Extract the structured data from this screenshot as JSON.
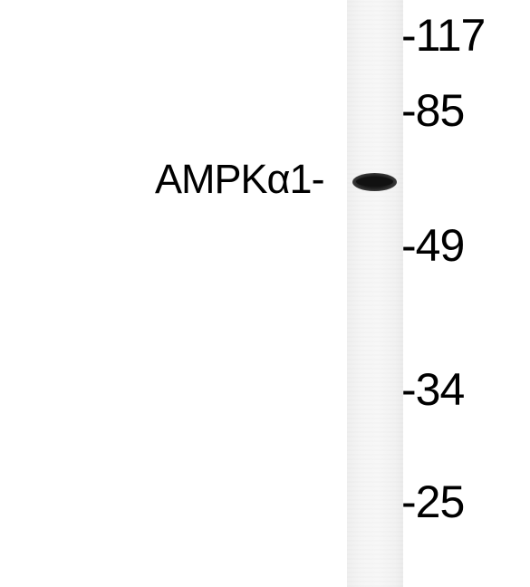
{
  "band_label": "AMPKα1-",
  "markers": [
    "-117",
    "-85",
    "-49",
    "-34",
    "-25"
  ]
}
